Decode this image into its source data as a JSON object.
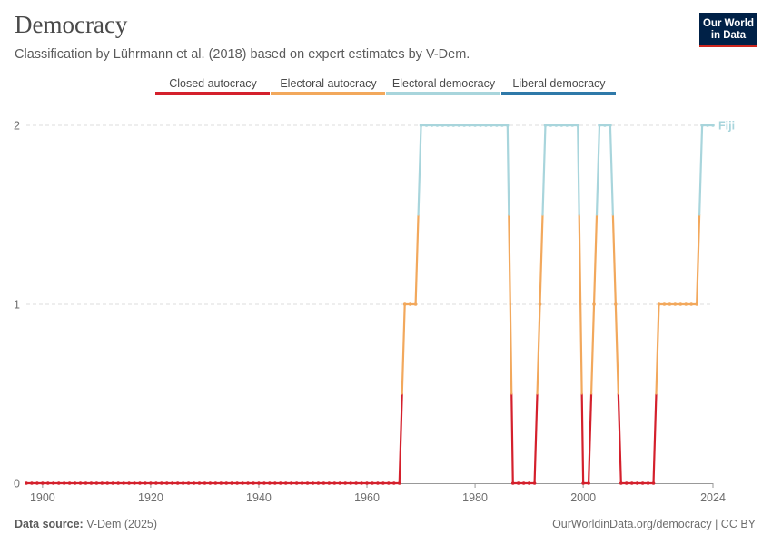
{
  "header": {
    "title": "Democracy",
    "subtitle": "Classification by Lührmann et al. (2018) based on expert estimates by V-Dem."
  },
  "logo": {
    "line1": "Our World",
    "line2": "in Data"
  },
  "footer": {
    "source_label": "Data source:",
    "source_value": "V-Dem (2025)",
    "attribution": "OurWorldinData.org/democracy | CC BY"
  },
  "colors": {
    "closed_autocracy": "#d4202c",
    "electoral_autocracy": "#f2a85c",
    "electoral_democracy": "#a8d5dc",
    "liberal_democracy": "#2f79a9",
    "grid": "#dddddd"
  },
  "chart_data": {
    "type": "line",
    "title": "Democracy",
    "subtitle": "Classification by Lührmann et al. (2018) based on expert estimates by V-Dem.",
    "legend": {
      "placement": "top",
      "entries": [
        "Closed autocracy",
        "Electoral autocracy",
        "Electoral democracy",
        "Liberal democracy"
      ]
    },
    "x_ticks": [
      1900,
      1920,
      1940,
      1960,
      1980,
      2000,
      2024
    ],
    "y_ticks": [
      0,
      1,
      2
    ],
    "xlim": [
      1897,
      2024
    ],
    "ylim": [
      0,
      2
    ],
    "grid": "horizontal dashed",
    "series": [
      {
        "name": "Fiji",
        "segments": [
          {
            "from": 1897,
            "to": 1966,
            "value": 0
          },
          {
            "from": 1967,
            "to": 1969,
            "value": 1
          },
          {
            "from": 1970,
            "to": 1986,
            "value": 2
          },
          {
            "from": 1987,
            "to": 1991,
            "value": 0
          },
          {
            "from": 1992,
            "to": 1992,
            "value": 1
          },
          {
            "from": 1993,
            "to": 1999,
            "value": 2
          },
          {
            "from": 2000,
            "to": 2001,
            "value": 0
          },
          {
            "from": 2002,
            "to": 2002,
            "value": 1
          },
          {
            "from": 2003,
            "to": 2005,
            "value": 2
          },
          {
            "from": 2006,
            "to": 2006,
            "value": 1
          },
          {
            "from": 2007,
            "to": 2013,
            "value": 0
          },
          {
            "from": 2014,
            "to": 2021,
            "value": 1
          },
          {
            "from": 2022,
            "to": 2024,
            "value": 2
          }
        ]
      }
    ]
  }
}
